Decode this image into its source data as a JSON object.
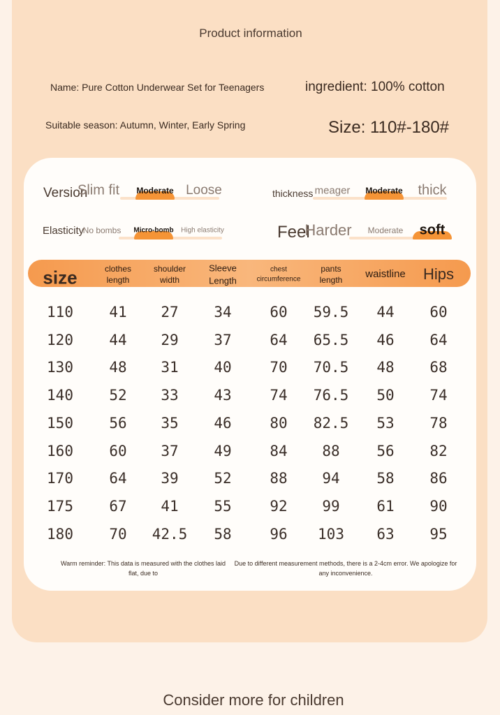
{
  "header": {
    "title": "Product information"
  },
  "info": {
    "name": "Name: Pure Cotton Underwear Set for Teenagers",
    "ingredient": "ingredient: 100% cotton",
    "season": "Suitable season: Autumn, Winter, Early Spring",
    "size": "Size: 110#-180#"
  },
  "attributes": [
    {
      "label": "Version",
      "options": [
        "Slim fit",
        "Moderate",
        "Loose"
      ],
      "selected": 1
    },
    {
      "label": "thickness",
      "options": [
        "meager",
        "Moderate",
        "thick"
      ],
      "selected": 1
    },
    {
      "label": "Elasticity",
      "options": [
        "No bombs",
        "Micro-bomb",
        "High elasticity"
      ],
      "selected": 1
    },
    {
      "label": "Feel",
      "options": [
        "Harder",
        "Moderate",
        "soft"
      ],
      "selected": 2
    }
  ],
  "table": {
    "headers": [
      "size",
      "clothes length",
      "shoulder width",
      "Sleeve Length",
      "chest circumference",
      "pants length",
      "waistline",
      "Hips"
    ],
    "rows": [
      [
        110,
        41,
        27,
        34,
        60,
        59.5,
        44,
        60
      ],
      [
        120,
        44,
        29,
        37,
        64,
        65.5,
        46,
        64
      ],
      [
        130,
        48,
        31,
        40,
        70,
        70.5,
        48,
        68
      ],
      [
        140,
        52,
        33,
        43,
        74,
        76.5,
        50,
        74
      ],
      [
        150,
        56,
        35,
        46,
        80,
        82.5,
        53,
        78
      ],
      [
        160,
        60,
        37,
        49,
        84,
        88,
        56,
        82
      ],
      [
        170,
        64,
        39,
        52,
        88,
        94,
        58,
        86
      ],
      [
        175,
        67,
        41,
        55,
        92,
        99,
        61,
        90
      ],
      [
        180,
        70,
        42.5,
        58,
        96,
        103,
        63,
        95
      ]
    ]
  },
  "note": {
    "left": "Warm reminder: This data is measured with the clothes laid flat, due to",
    "right": "Due to different measurement methods, there is a 2-4cm error. We apologize for any inconvenience."
  },
  "footer": {
    "title": "Consider more for children"
  }
}
